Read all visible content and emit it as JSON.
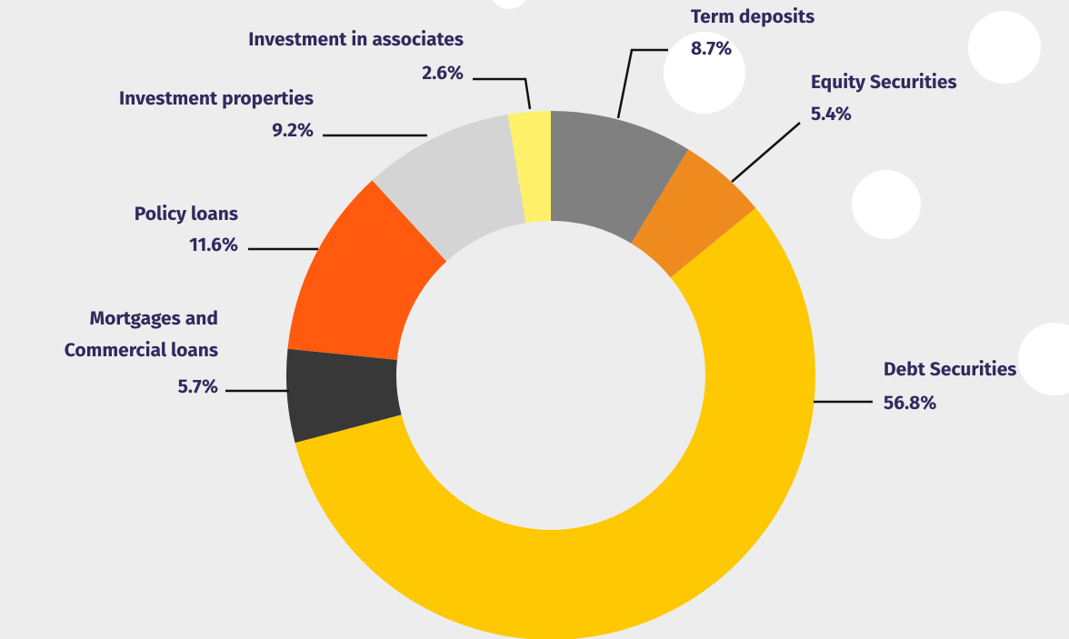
{
  "chart_data": {
    "type": "donut",
    "categories": [
      "Term deposits",
      "Equity Securities",
      "Debt Securities",
      "Mortgages and\nCommercial loans",
      "Policy loans",
      "Investment properties",
      "Investment in associates"
    ],
    "values": [
      8.7,
      5.4,
      56.8,
      5.7,
      11.6,
      9.2,
      2.6
    ],
    "value_labels": [
      "8.7%",
      "5.4%",
      "56.8%",
      "5.7%",
      "11.6%",
      "9.2%",
      "2.6%"
    ],
    "colors": [
      "#808080",
      "#ef8a1f",
      "#fec803",
      "#383838",
      "#ff5a0e",
      "#d4d4d4",
      "#fff06a"
    ]
  }
}
